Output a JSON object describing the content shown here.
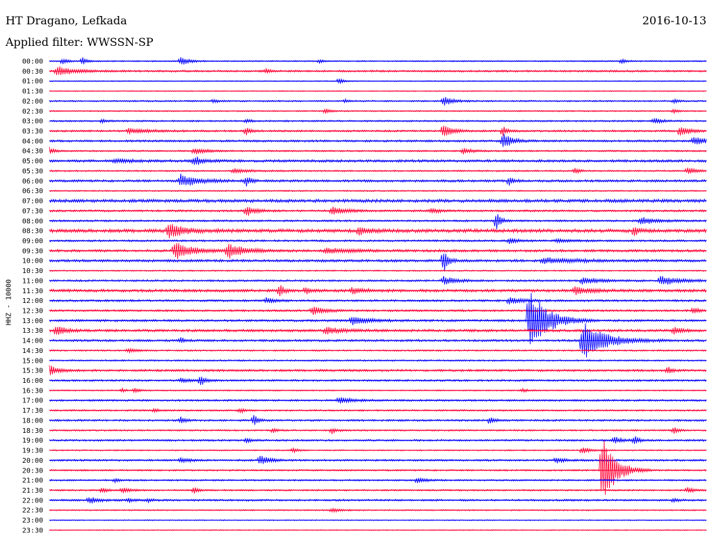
{
  "header": {
    "station": "HT Dragano, Lefkada",
    "filter": "Applied filter: WWSSN-SP",
    "date": "2016-10-13"
  },
  "y_axis_label": "HHZ - 10000",
  "colors": {
    "even_trace": "#0000ff",
    "odd_trace": "#ff0033",
    "text": "#000000"
  },
  "chart_data": {
    "type": "line",
    "description_type": "helicorder",
    "title": "HT Dragano, Lefkada",
    "subtitle": "Applied filter: WWSSN-SP",
    "ylabel": "HHZ - 10000",
    "trace_minutes": 30,
    "traces": [
      {
        "label": "00:00",
        "noise": 0.8,
        "events": [
          [
            0.02,
            5,
            1
          ],
          [
            0.05,
            6,
            1
          ],
          [
            0.2,
            6,
            2
          ],
          [
            0.41,
            3,
            1
          ],
          [
            0.87,
            4,
            1
          ]
        ]
      },
      {
        "label": "00:30",
        "noise": 1.2,
        "events": [
          [
            0.01,
            7,
            4
          ],
          [
            0.33,
            3,
            1
          ]
        ]
      },
      {
        "label": "01:00",
        "noise": 0.6,
        "events": [
          [
            0.44,
            5,
            1
          ]
        ]
      },
      {
        "label": "01:30",
        "noise": 0.6,
        "events": []
      },
      {
        "label": "02:00",
        "noise": 1.0,
        "events": [
          [
            0.25,
            3,
            1
          ],
          [
            0.45,
            3,
            1
          ],
          [
            0.6,
            7,
            2
          ],
          [
            0.95,
            3,
            1
          ]
        ]
      },
      {
        "label": "02:30",
        "noise": 0.8,
        "events": [
          [
            0.42,
            5,
            1
          ],
          [
            0.95,
            3,
            1
          ]
        ]
      },
      {
        "label": "03:00",
        "noise": 1.0,
        "events": [
          [
            0.08,
            3,
            1
          ],
          [
            0.3,
            3,
            1
          ],
          [
            0.92,
            4,
            2
          ]
        ]
      },
      {
        "label": "03:30",
        "noise": 1.2,
        "events": [
          [
            0.12,
            4,
            5
          ],
          [
            0.3,
            6,
            1
          ],
          [
            0.6,
            10,
            2
          ],
          [
            0.69,
            7,
            1
          ],
          [
            0.96,
            9,
            2
          ]
        ]
      },
      {
        "label": "04:00",
        "noise": 1.3,
        "events": [
          [
            0.69,
            13,
            2
          ],
          [
            0.98,
            6,
            3
          ]
        ]
      },
      {
        "label": "04:30",
        "noise": 1.0,
        "events": [
          [
            0.0,
            6,
            1
          ],
          [
            0.22,
            5,
            3
          ],
          [
            0.63,
            4,
            2
          ]
        ]
      },
      {
        "label": "05:00",
        "noise": 1.6,
        "events": [
          [
            0.22,
            7,
            2
          ],
          [
            0.1,
            3,
            4
          ]
        ]
      },
      {
        "label": "05:30",
        "noise": 1.0,
        "events": [
          [
            0.28,
            3,
            4
          ],
          [
            0.8,
            5,
            1
          ],
          [
            0.97,
            5,
            2
          ]
        ]
      },
      {
        "label": "06:00",
        "noise": 1.5,
        "events": [
          [
            0.2,
            9,
            4
          ],
          [
            0.3,
            8,
            1
          ],
          [
            0.7,
            6,
            1
          ]
        ]
      },
      {
        "label": "06:30",
        "noise": 0.8,
        "events": []
      },
      {
        "label": "07:00",
        "noise": 2.0,
        "events": []
      },
      {
        "label": "07:30",
        "noise": 1.3,
        "events": [
          [
            0.3,
            8,
            2
          ],
          [
            0.43,
            6,
            3
          ],
          [
            0.58,
            4,
            2
          ]
        ]
      },
      {
        "label": "08:00",
        "noise": 1.2,
        "events": [
          [
            0.68,
            14,
            1
          ],
          [
            0.9,
            6,
            3
          ]
        ]
      },
      {
        "label": "08:30",
        "noise": 2.2,
        "events": [
          [
            0.18,
            10,
            4
          ],
          [
            0.47,
            7,
            2
          ],
          [
            0.89,
            7,
            1
          ]
        ]
      },
      {
        "label": "09:00",
        "noise": 1.2,
        "events": [
          [
            0.7,
            4,
            2
          ],
          [
            0.77,
            3,
            3
          ]
        ]
      },
      {
        "label": "09:30",
        "noise": 1.6,
        "events": [
          [
            0.19,
            13,
            4
          ],
          [
            0.27,
            11,
            4
          ],
          [
            0.42,
            4,
            5
          ]
        ]
      },
      {
        "label": "10:00",
        "noise": 1.6,
        "events": [
          [
            0.6,
            16,
            1
          ],
          [
            0.75,
            4,
            8
          ]
        ]
      },
      {
        "label": "10:30",
        "noise": 0.8,
        "events": []
      },
      {
        "label": "11:00",
        "noise": 1.2,
        "events": [
          [
            0.6,
            6,
            3
          ],
          [
            0.81,
            5,
            4
          ],
          [
            0.93,
            7,
            4
          ]
        ]
      },
      {
        "label": "11:30",
        "noise": 1.8,
        "events": [
          [
            0.35,
            9,
            1
          ],
          [
            0.39,
            5,
            1
          ],
          [
            0.46,
            4,
            3
          ],
          [
            0.8,
            5,
            4
          ]
        ]
      },
      {
        "label": "12:00",
        "noise": 1.3,
        "events": [
          [
            0.33,
            4,
            2
          ],
          [
            0.7,
            5,
            3
          ]
        ]
      },
      {
        "label": "12:30",
        "noise": 1.3,
        "events": [
          [
            0.4,
            6,
            3
          ],
          [
            0.98,
            6,
            1
          ]
        ]
      },
      {
        "label": "13:00",
        "noise": 1.4,
        "events": [
          [
            0.46,
            6,
            4
          ],
          [
            0.73,
            48,
            4
          ]
        ]
      },
      {
        "label": "13:30",
        "noise": 1.6,
        "events": [
          [
            0.01,
            8,
            2
          ],
          [
            0.42,
            5,
            4
          ],
          [
            0.95,
            5,
            2
          ]
        ]
      },
      {
        "label": "14:00",
        "noise": 1.4,
        "events": [
          [
            0.2,
            4,
            1
          ],
          [
            0.81,
            30,
            5
          ]
        ]
      },
      {
        "label": "14:30",
        "noise": 1.0,
        "events": [
          [
            0.12,
            3,
            2
          ]
        ]
      },
      {
        "label": "15:00",
        "noise": 1.0,
        "events": []
      },
      {
        "label": "15:30",
        "noise": 1.4,
        "events": [
          [
            0.0,
            7,
            2
          ],
          [
            0.94,
            6,
            1
          ]
        ]
      },
      {
        "label": "16:00",
        "noise": 1.2,
        "events": [
          [
            0.23,
            8,
            1
          ],
          [
            0.2,
            3,
            3
          ]
        ]
      },
      {
        "label": "16:30",
        "noise": 0.8,
        "events": [
          [
            0.11,
            3,
            1
          ],
          [
            0.13,
            4,
            1
          ],
          [
            0.72,
            3,
            1
          ]
        ]
      },
      {
        "label": "17:00",
        "noise": 1.2,
        "events": [
          [
            0.44,
            5,
            3
          ]
        ]
      },
      {
        "label": "17:30",
        "noise": 1.0,
        "events": [
          [
            0.16,
            3,
            1
          ],
          [
            0.29,
            4,
            1
          ]
        ]
      },
      {
        "label": "18:00",
        "noise": 1.2,
        "events": [
          [
            0.2,
            5,
            1
          ],
          [
            0.31,
            10,
            1
          ],
          [
            0.67,
            7,
            1
          ]
        ]
      },
      {
        "label": "18:30",
        "noise": 1.0,
        "events": [
          [
            0.34,
            4,
            1
          ],
          [
            0.43,
            5,
            1
          ],
          [
            0.95,
            6,
            1
          ]
        ]
      },
      {
        "label": "19:00",
        "noise": 1.2,
        "events": [
          [
            0.3,
            4,
            1
          ],
          [
            0.86,
            5,
            2
          ],
          [
            0.89,
            7,
            1
          ]
        ]
      },
      {
        "label": "19:30",
        "noise": 0.8,
        "events": [
          [
            0.37,
            4,
            1
          ],
          [
            0.81,
            5,
            2
          ]
        ]
      },
      {
        "label": "20:00",
        "noise": 1.2,
        "events": [
          [
            0.2,
            4,
            2
          ],
          [
            0.32,
            8,
            2
          ],
          [
            0.77,
            4,
            2
          ]
        ]
      },
      {
        "label": "20:30",
        "noise": 1.0,
        "events": [
          [
            0.84,
            55,
            3
          ]
        ]
      },
      {
        "label": "21:00",
        "noise": 1.0,
        "events": [
          [
            0.1,
            3,
            1
          ],
          [
            0.56,
            4,
            2
          ]
        ]
      },
      {
        "label": "21:30",
        "noise": 1.0,
        "events": [
          [
            0.08,
            5,
            1
          ],
          [
            0.11,
            4,
            2
          ],
          [
            0.22,
            5,
            1
          ],
          [
            0.97,
            4,
            2
          ]
        ]
      },
      {
        "label": "22:00",
        "noise": 1.2,
        "events": [
          [
            0.06,
            5,
            2
          ],
          [
            0.12,
            4,
            1
          ],
          [
            0.15,
            3,
            1
          ],
          [
            0.95,
            3,
            1
          ]
        ]
      },
      {
        "label": "22:30",
        "noise": 0.8,
        "events": [
          [
            0.43,
            3,
            2
          ]
        ]
      },
      {
        "label": "23:00",
        "noise": 0.6,
        "events": []
      },
      {
        "label": "23:30",
        "noise": 0.6,
        "events": []
      }
    ]
  }
}
